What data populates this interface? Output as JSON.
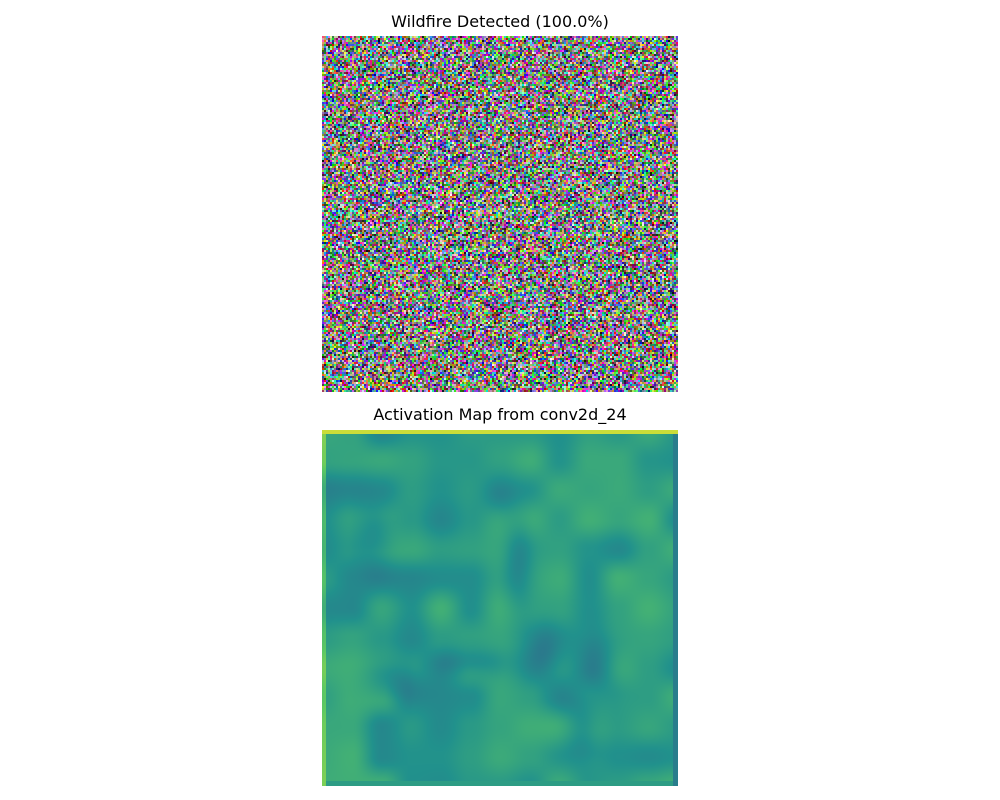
{
  "panels": {
    "top": {
      "title": "Wildfire Detected (100.0%)",
      "image": "random-noise-rgb"
    },
    "bottom": {
      "title": "Activation Map from conv2d_24",
      "image": "activation-heatmap",
      "colormap": "viridis"
    }
  },
  "colors": {
    "background": "#ffffff",
    "title_text": "#000000",
    "activation_base": "#21a585",
    "activation_low": "#3b528b",
    "activation_high": "#fde725"
  }
}
